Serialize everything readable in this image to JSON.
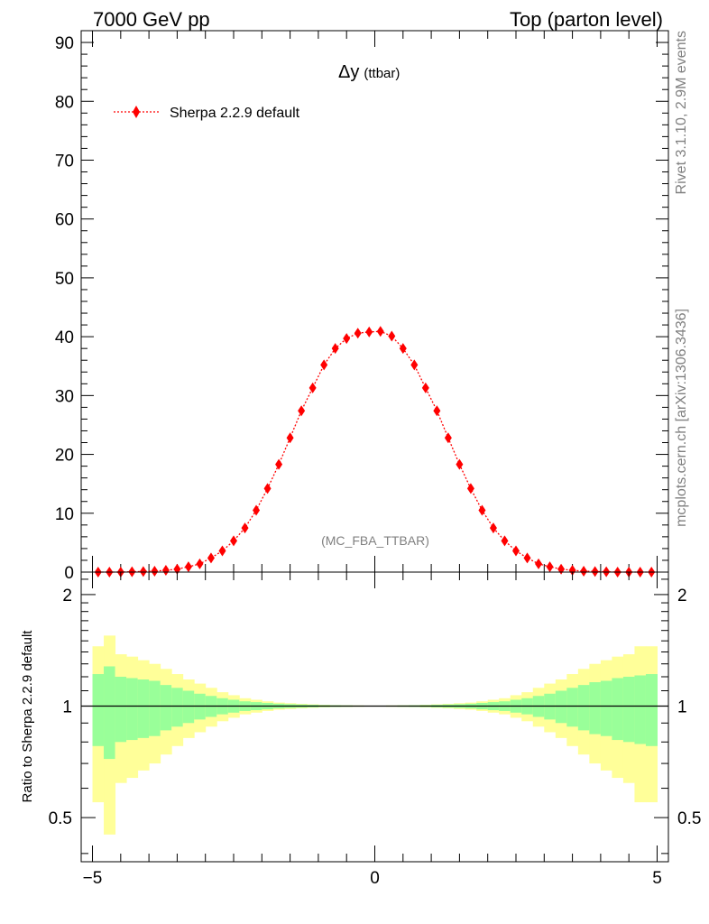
{
  "header": {
    "left": "7000 GeV pp",
    "right": "Top (parton level)"
  },
  "side_labels": {
    "top": "Rivet 3.1.10,  2.9M events",
    "bottom": "mcplots.cern.ch [arXiv:1306.3436]"
  },
  "colors": {
    "series": "#ff0000",
    "band_inner": "#99ff99",
    "band_outer": "#ffff99"
  },
  "chart_data": [
    {
      "type": "scatter",
      "title_main": "Δy",
      "title_sub": "(ttbar)",
      "watermark": "(MC_FBA_TTBAR)",
      "legend_placement": "top-left",
      "xlim": [
        -5.2,
        5.2
      ],
      "ylim": [
        0,
        92
      ],
      "ytick_labels": [
        "0",
        "10",
        "20",
        "30",
        "40",
        "50",
        "60",
        "70",
        "80",
        "90"
      ],
      "series": [
        {
          "name": "Sherpa 2.2.9 default",
          "x": [
            -4.9,
            -4.7,
            -4.5,
            -4.3,
            -4.1,
            -3.9,
            -3.7,
            -3.5,
            -3.3,
            -3.1,
            -2.9,
            -2.7,
            -2.5,
            -2.3,
            -2.1,
            -1.9,
            -1.7,
            -1.5,
            -1.3,
            -1.1,
            -0.9,
            -0.7,
            -0.5,
            -0.3,
            -0.1,
            0.1,
            0.3,
            0.5,
            0.7,
            0.9,
            1.1,
            1.3,
            1.5,
            1.7,
            1.9,
            2.1,
            2.3,
            2.5,
            2.7,
            2.9,
            3.1,
            3.3,
            3.5,
            3.7,
            3.9,
            4.1,
            4.3,
            4.5,
            4.7,
            4.9
          ],
          "y": [
            0.0,
            0.0,
            0.0,
            0.05,
            0.1,
            0.15,
            0.3,
            0.5,
            0.9,
            1.4,
            2.4,
            3.6,
            5.3,
            7.5,
            10.5,
            14.2,
            18.3,
            22.8,
            27.4,
            31.3,
            35.2,
            38.0,
            39.7,
            40.6,
            40.8,
            40.9,
            40.1,
            38.0,
            35.2,
            31.3,
            27.4,
            22.8,
            18.3,
            14.2,
            10.5,
            7.5,
            5.3,
            3.6,
            2.4,
            1.4,
            0.9,
            0.5,
            0.3,
            0.15,
            0.1,
            0.05,
            0.0,
            0.0,
            0.0,
            0.0
          ]
        }
      ]
    },
    {
      "type": "area",
      "ylabel": "Ratio to Sherpa 2.2.9 default",
      "xlim": [
        -5.2,
        5.2
      ],
      "ylim": [
        0.38,
        2.3
      ],
      "log_y": true,
      "xtick_labels": [
        "−5",
        "0",
        "5"
      ],
      "ytick_labels": [
        "0.5",
        "1",
        "2"
      ],
      "reference_line": 1.0,
      "bins_x": [
        -5.0,
        -4.8,
        -4.6,
        -4.4,
        -4.2,
        -4.0,
        -3.8,
        -3.6,
        -3.4,
        -3.2,
        -3.0,
        -2.8,
        -2.6,
        -2.4,
        -2.2,
        -2.0,
        -1.8,
        -1.6,
        -1.4,
        -1.2,
        -1.0,
        -0.8,
        -0.6,
        -0.4,
        -0.2,
        0.0,
        0.2,
        0.4,
        0.6,
        0.8,
        1.0,
        1.2,
        1.4,
        1.6,
        1.8,
        2.0,
        2.2,
        2.4,
        2.6,
        2.8,
        3.0,
        3.2,
        3.4,
        3.6,
        3.8,
        4.0,
        4.2,
        4.4,
        4.6,
        4.8,
        5.0
      ],
      "green_band": [
        0.22,
        0.28,
        0.2,
        0.19,
        0.18,
        0.17,
        0.14,
        0.12,
        0.1,
        0.08,
        0.065,
        0.05,
        0.04,
        0.03,
        0.025,
        0.02,
        0.015,
        0.012,
        0.01,
        0.008,
        0.006,
        0.005,
        0.004,
        0.003,
        0.002,
        0.002,
        0.003,
        0.004,
        0.005,
        0.006,
        0.008,
        0.01,
        0.012,
        0.015,
        0.02,
        0.025,
        0.03,
        0.04,
        0.05,
        0.065,
        0.08,
        0.1,
        0.12,
        0.14,
        0.16,
        0.17,
        0.19,
        0.2,
        0.21,
        0.22
      ],
      "yellow_band": [
        0.45,
        0.55,
        0.38,
        0.36,
        0.33,
        0.3,
        0.26,
        0.22,
        0.18,
        0.15,
        0.12,
        0.09,
        0.07,
        0.05,
        0.04,
        0.03,
        0.022,
        0.018,
        0.014,
        0.011,
        0.008,
        0.006,
        0.005,
        0.004,
        0.003,
        0.003,
        0.004,
        0.005,
        0.006,
        0.008,
        0.011,
        0.014,
        0.018,
        0.022,
        0.03,
        0.04,
        0.05,
        0.07,
        0.09,
        0.12,
        0.15,
        0.18,
        0.22,
        0.26,
        0.3,
        0.33,
        0.36,
        0.38,
        0.45,
        0.45
      ]
    }
  ]
}
